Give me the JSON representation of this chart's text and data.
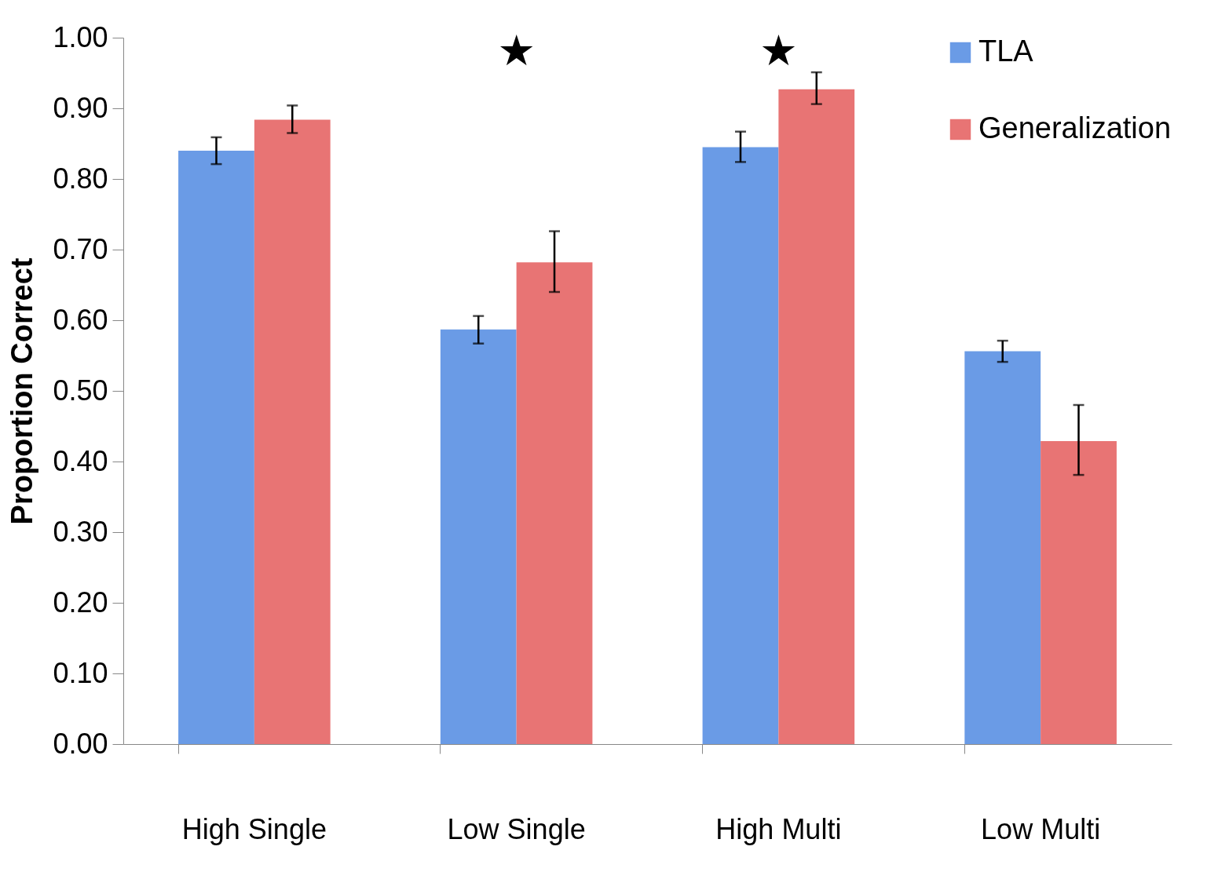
{
  "chart_data": {
    "type": "bar",
    "ylabel": "Proportion Correct",
    "categories": [
      "High Single",
      "Low Single",
      "High Multi",
      "Low Multi"
    ],
    "series": [
      {
        "name": "TLA",
        "color": "#6a9be6",
        "values": [
          0.84,
          0.587,
          0.845,
          0.556
        ],
        "errors": [
          [
            0.821,
            0.859
          ],
          [
            0.567,
            0.606
          ],
          [
            0.824,
            0.867
          ],
          [
            0.541,
            0.571
          ]
        ]
      },
      {
        "name": "Generalization",
        "color": "#e87474",
        "values": [
          0.884,
          0.682,
          0.927,
          0.429
        ],
        "errors": [
          [
            0.865,
            0.904
          ],
          [
            0.64,
            0.726
          ],
          [
            0.906,
            0.951
          ],
          [
            0.381,
            0.48
          ]
        ]
      }
    ],
    "ylim": [
      0,
      1
    ],
    "yticks": [
      {
        "value": 0,
        "label": "0.00"
      },
      {
        "value": 0.1,
        "label": "0.10"
      },
      {
        "value": 0.2,
        "label": "0.20"
      },
      {
        "value": 0.3,
        "label": "0.30"
      },
      {
        "value": 0.4,
        "label": "0.40"
      },
      {
        "value": 0.5,
        "label": "0.50"
      },
      {
        "value": 0.6,
        "label": "0.60"
      },
      {
        "value": 0.7,
        "label": "0.70"
      },
      {
        "value": 0.8,
        "label": "0.80"
      },
      {
        "value": 0.9,
        "label": "0.90"
      },
      {
        "value": 1,
        "label": "1.00"
      }
    ],
    "annotations": [
      "★",
      "★"
    ],
    "legend": "top right",
    "grid": false
  }
}
